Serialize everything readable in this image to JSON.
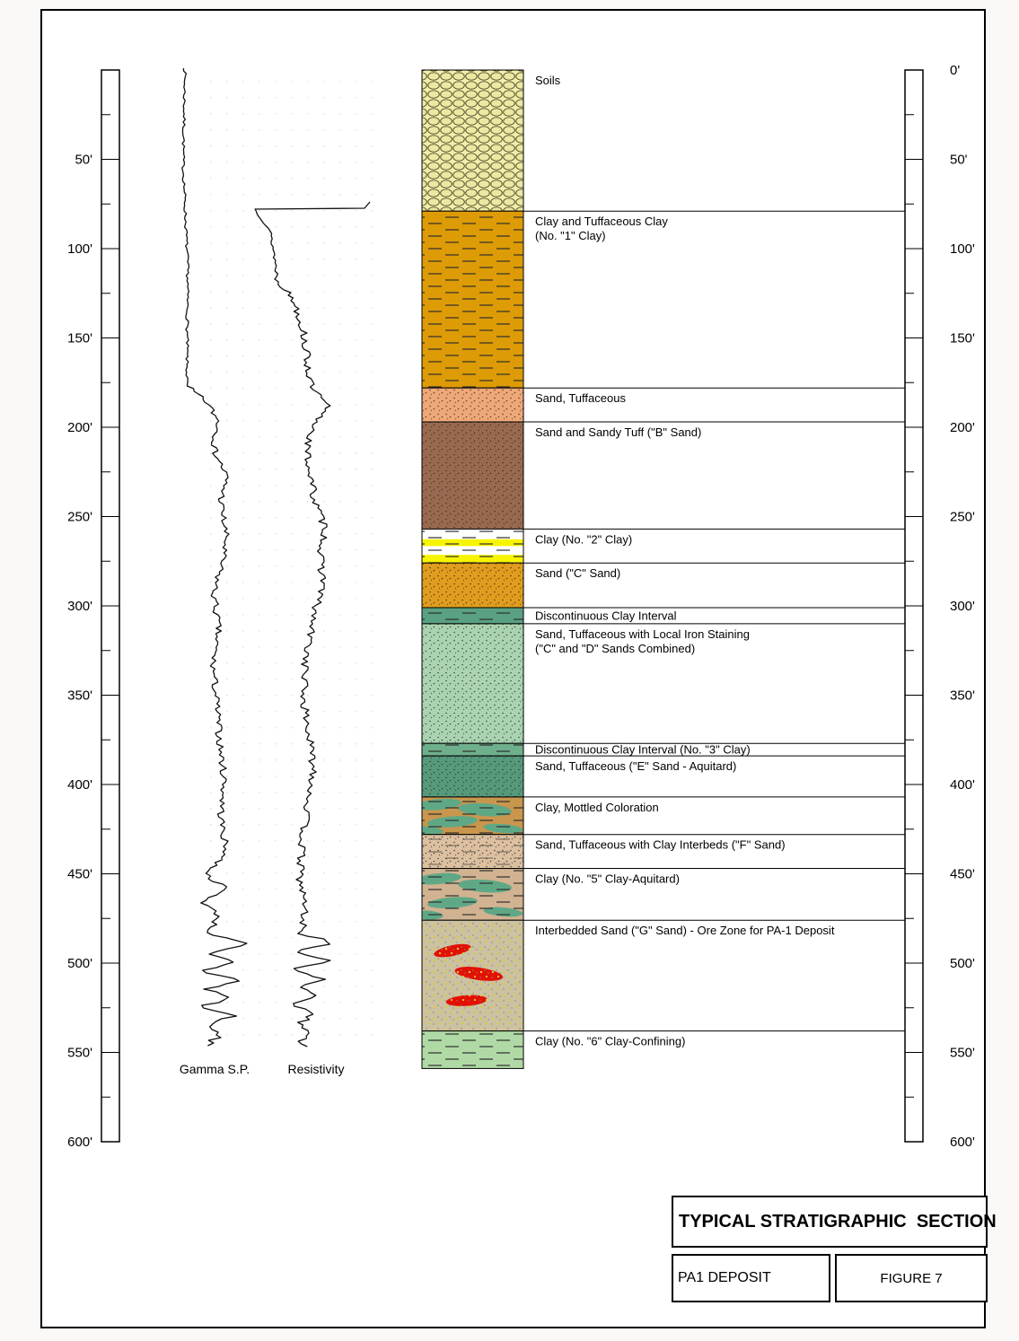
{
  "title_block": {
    "title": "TYPICAL STRATIGRAPHIC  SECTION",
    "deposit": "PA1 DEPOSIT",
    "figure": "FIGURE 7"
  },
  "logs": {
    "gamma_label": "Gamma S.P.",
    "resistivity_label": "Resistivity"
  },
  "scales": {
    "unit": "feet",
    "max_depth": 600,
    "left_labels": [
      "50'",
      "100'",
      "150'",
      "200'",
      "250'",
      "300'",
      "350'",
      "400'",
      "450'",
      "500'",
      "550'",
      "600'"
    ],
    "left_depths": [
      50,
      100,
      150,
      200,
      250,
      300,
      350,
      400,
      450,
      500,
      550,
      600
    ],
    "right_labels": [
      "0'",
      "50'",
      "100'",
      "150'",
      "200'",
      "250'",
      "300'",
      "350'",
      "400'",
      "450'",
      "500'",
      "550'",
      "600'"
    ],
    "right_depths": [
      0,
      50,
      100,
      150,
      200,
      250,
      300,
      350,
      400,
      450,
      500,
      550,
      600
    ]
  },
  "layers": [
    {
      "label": "Soils",
      "top_ft": 0,
      "bottom_ft": 79,
      "bg": "#f1eeab",
      "pattern": "soils"
    },
    {
      "label": "Clay and Tuffaceous Clay\n(No. \"1\" Clay)",
      "top_ft": 79,
      "bottom_ft": 178,
      "bg": "#dd9b06",
      "pattern": "dash"
    },
    {
      "label": "Sand, Tuffaceous",
      "top_ft": 178,
      "bottom_ft": 197,
      "bg": "#efa878",
      "pattern": "dots"
    },
    {
      "label": "Sand and Sandy Tuff (\"B\" Sand)",
      "top_ft": 197,
      "bottom_ft": 257,
      "bg": "#9a6a50",
      "pattern": "dots"
    },
    {
      "label": "Clay (No. \"2\" Clay)",
      "top_ft": 257,
      "bottom_ft": 276,
      "bg": "#ffffff",
      "pattern": "dash",
      "extra": "yellow-bands"
    },
    {
      "label": "Sand (\"C\" Sand)",
      "top_ft": 276,
      "bottom_ft": 301,
      "bg": "#e19d1d",
      "pattern": "dots"
    },
    {
      "label": "Discontinuous Clay Interval",
      "top_ft": 301,
      "bottom_ft": 310,
      "bg": "#5aa183",
      "pattern": "dash"
    },
    {
      "label": "Sand, Tuffaceous with Local Iron Staining\n(\"C\" and \"D\" Sands Combined)",
      "top_ft": 310,
      "bottom_ft": 377,
      "bg": "#a9d3b1",
      "pattern": "dots"
    },
    {
      "label": "Discontinuous Clay Interval (No. \"3\" Clay)",
      "top_ft": 377,
      "bottom_ft": 384,
      "bg": "#6fb08c",
      "pattern": "dash"
    },
    {
      "label": "Sand, Tuffaceous (\"E\" Sand - Aquitard)",
      "top_ft": 384,
      "bottom_ft": 407,
      "bg": "#569a7b",
      "pattern": "dots"
    },
    {
      "label": "Clay, Mottled Coloration",
      "top_ft": 407,
      "bottom_ft": 428,
      "bg": "#c8964d",
      "pattern": "dash",
      "extra": "green-blobs"
    },
    {
      "label": "Sand, Tuffaceous with Clay Interbeds (\"F\" Sand)",
      "top_ft": 428,
      "bottom_ft": 447,
      "bg": "#dcc0a0",
      "pattern": "dots-dash"
    },
    {
      "label": "Clay (No. \"5\" Clay-Aquitard)",
      "top_ft": 447,
      "bottom_ft": 476,
      "bg": "#d1b291",
      "pattern": "dash",
      "extra": "green-blobs"
    },
    {
      "label": "Interbedded Sand (\"G\" Sand) - Ore Zone for PA-1 Deposit",
      "top_ft": 476,
      "bottom_ft": 538,
      "bg": "#ccc2a1",
      "pattern": "speckle",
      "extra": "red-blobs"
    },
    {
      "label": "Clay (No. \"6\" Clay-Confining)",
      "top_ft": 538,
      "bottom_ft": 559,
      "bg": "#b0daa5",
      "pattern": "dash"
    }
  ],
  "ore_color": "#e31005",
  "accent_colors": {
    "clay_green": "#5fa886",
    "yellow_band": "#f7f400"
  }
}
